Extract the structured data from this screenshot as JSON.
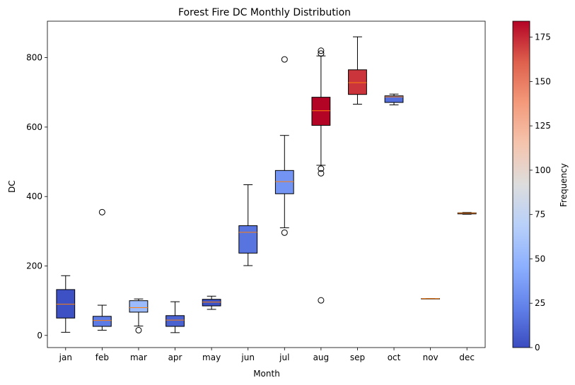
{
  "chart_data": {
    "type": "box",
    "title": "Forest Fire DC Monthly Distribution",
    "xlabel": "Month",
    "ylabel": "DC",
    "ylim": [
      -35,
      905
    ],
    "yticks": [
      0,
      200,
      400,
      600,
      800
    ],
    "grid": false,
    "categories": [
      "jan",
      "feb",
      "mar",
      "apr",
      "may",
      "jun",
      "jul",
      "aug",
      "sep",
      "oct",
      "nov",
      "dec"
    ],
    "boxes": [
      {
        "month": "jan",
        "whisker_low": 9,
        "q1": 50,
        "median": 90,
        "q3": 132,
        "whisker_high": 172,
        "outliers": [],
        "frequency": 2
      },
      {
        "month": "feb",
        "whisker_low": 15,
        "q1": 26,
        "median": 43,
        "q3": 55,
        "whisker_high": 87,
        "outliers": [
          355
        ],
        "frequency": 20
      },
      {
        "month": "mar",
        "whisker_low": 27,
        "q1": 67,
        "median": 80,
        "q3": 100,
        "whisker_high": 105,
        "outliers": [
          15
        ],
        "frequency": 54
      },
      {
        "month": "apr",
        "whisker_low": 8,
        "q1": 26,
        "median": 44,
        "q3": 57,
        "whisker_high": 97,
        "outliers": [],
        "frequency": 9
      },
      {
        "month": "may",
        "whisker_low": 75,
        "q1": 85,
        "median": 96,
        "q3": 104,
        "whisker_high": 113,
        "outliers": [],
        "frequency": 2
      },
      {
        "month": "jun",
        "whisker_low": 201,
        "q1": 237,
        "median": 297,
        "q3": 316,
        "whisker_high": 434,
        "outliers": [],
        "frequency": 17
      },
      {
        "month": "jul",
        "whisker_low": 310,
        "q1": 408,
        "median": 443,
        "q3": 475,
        "whisker_high": 576,
        "outliers": [
          296,
          795
        ],
        "frequency": 32
      },
      {
        "month": "aug",
        "whisker_low": 490,
        "q1": 605,
        "median": 647,
        "q3": 686,
        "whisker_high": 805,
        "outliers": [
          101,
          467,
          480,
          812,
          820
        ],
        "frequency": 184
      },
      {
        "month": "sep",
        "whisker_low": 666,
        "q1": 694,
        "median": 728,
        "q3": 765,
        "whisker_high": 860,
        "outliers": [],
        "frequency": 172
      },
      {
        "month": "oct",
        "whisker_low": 664,
        "q1": 671,
        "median": 687,
        "q3": 690,
        "whisker_high": 695,
        "outliers": [],
        "frequency": 15
      },
      {
        "month": "nov",
        "whisker_low": 106,
        "q1": 106,
        "median": 106,
        "q3": 106,
        "whisker_high": 106,
        "outliers": [],
        "frequency": 1
      },
      {
        "month": "dec",
        "whisker_low": 349,
        "q1": 350,
        "median": 352,
        "q3": 353,
        "whisker_high": 354,
        "outliers": [],
        "frequency": 9
      }
    ],
    "colorbar": {
      "label": "Frequency",
      "colormap": "coolwarm",
      "range": [
        0,
        184
      ],
      "ticks": [
        0,
        25,
        50,
        75,
        100,
        125,
        150,
        175
      ]
    },
    "median_color": "#ff7f0e"
  }
}
